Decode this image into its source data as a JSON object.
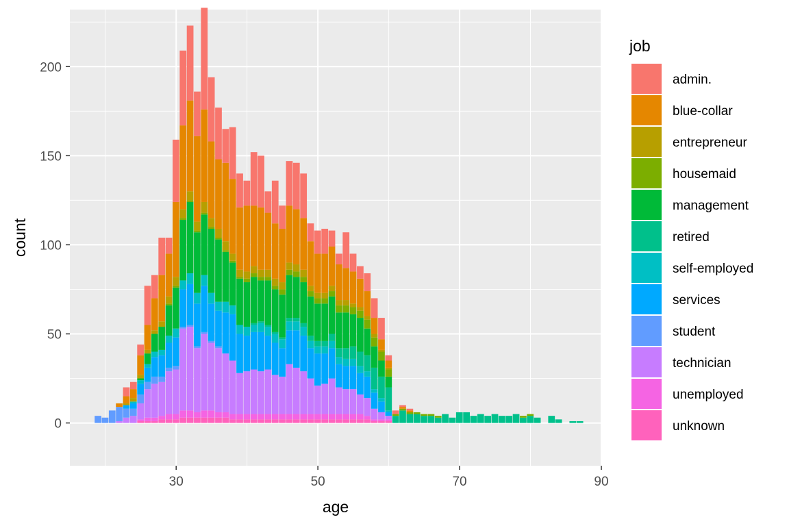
{
  "chart_data": {
    "type": "bar",
    "stacked": true,
    "xlabel": "age",
    "ylabel": "count",
    "xlim": [
      15,
      90
    ],
    "ylim": [
      -24,
      232
    ],
    "x_ticks": [
      30,
      50,
      70,
      90
    ],
    "y_ticks": [
      0,
      50,
      100,
      150,
      200
    ],
    "grid": true,
    "legend_title": "job",
    "legend_position": "right",
    "x": [
      19,
      20,
      21,
      22,
      23,
      24,
      25,
      26,
      27,
      28,
      29,
      30,
      31,
      32,
      33,
      34,
      35,
      36,
      37,
      38,
      39,
      40,
      41,
      42,
      43,
      44,
      45,
      46,
      47,
      48,
      49,
      50,
      51,
      52,
      53,
      54,
      55,
      56,
      57,
      58,
      59,
      60,
      61,
      62,
      63,
      64,
      65,
      66,
      67,
      68,
      69,
      70,
      71,
      72,
      73,
      74,
      75,
      76,
      77,
      78,
      79,
      80,
      81,
      83,
      84,
      86,
      87
    ],
    "series": [
      {
        "name": "unknown",
        "color": "#FF62BC",
        "values": [
          0,
          0,
          0,
          0,
          0,
          0,
          1,
          1,
          1,
          2,
          2,
          2,
          3,
          3,
          3,
          3,
          3,
          3,
          3,
          2,
          2,
          2,
          2,
          2,
          2,
          2,
          2,
          2,
          2,
          2,
          2,
          2,
          2,
          2,
          2,
          2,
          2,
          2,
          2,
          1,
          1,
          1,
          0,
          0,
          0,
          0,
          0,
          0,
          0,
          0,
          0,
          0,
          0,
          0,
          0,
          0,
          0,
          0,
          0,
          0,
          0,
          0,
          0,
          0,
          0,
          0,
          0
        ]
      },
      {
        "name": "unemployed",
        "color": "#F564E3",
        "values": [
          0,
          0,
          0,
          0,
          0,
          0,
          1,
          2,
          2,
          2,
          3,
          3,
          4,
          4,
          3,
          4,
          4,
          3,
          3,
          3,
          3,
          3,
          3,
          3,
          3,
          3,
          3,
          3,
          3,
          3,
          3,
          3,
          3,
          3,
          3,
          3,
          3,
          3,
          2,
          1,
          1,
          1,
          0,
          0,
          0,
          0,
          0,
          0,
          0,
          0,
          0,
          0,
          0,
          0,
          0,
          0,
          0,
          0,
          0,
          0,
          0,
          0,
          0,
          0,
          0,
          0,
          0
        ]
      },
      {
        "name": "technician",
        "color": "#C77CFF",
        "values": [
          0,
          0,
          0,
          1,
          3,
          4,
          9,
          16,
          19,
          19,
          24,
          25,
          46,
          47,
          36,
          43,
          38,
          36,
          33,
          30,
          23,
          24,
          25,
          24,
          25,
          22,
          21,
          28,
          26,
          24,
          20,
          16,
          17,
          20,
          15,
          14,
          14,
          11,
          10,
          6,
          4,
          2,
          0,
          0,
          0,
          0,
          0,
          0,
          0,
          0,
          0,
          0,
          0,
          0,
          0,
          0,
          0,
          0,
          0,
          0,
          0,
          0,
          0,
          0,
          0,
          0,
          0
        ]
      },
      {
        "name": "student",
        "color": "#619CFF",
        "values": [
          4,
          3,
          7,
          8,
          5,
          4,
          5,
          4,
          4,
          3,
          2,
          2,
          1,
          1,
          1,
          1,
          1,
          1,
          0,
          0,
          0,
          0,
          0,
          0,
          0,
          0,
          0,
          0,
          0,
          0,
          0,
          0,
          0,
          0,
          0,
          0,
          0,
          0,
          0,
          0,
          0,
          0,
          0,
          0,
          0,
          0,
          0,
          0,
          0,
          0,
          0,
          0,
          0,
          0,
          0,
          0,
          0,
          0,
          0,
          0,
          0,
          0,
          0,
          0,
          0,
          0,
          0
        ]
      },
      {
        "name": "services",
        "color": "#00A9FF",
        "values": [
          0,
          0,
          0,
          0,
          2,
          3,
          6,
          8,
          11,
          12,
          14,
          16,
          21,
          23,
          24,
          26,
          21,
          20,
          23,
          26,
          22,
          20,
          21,
          22,
          19,
          18,
          16,
          19,
          21,
          20,
          17,
          18,
          17,
          17,
          13,
          13,
          13,
          12,
          12,
          9,
          6,
          2,
          0,
          0,
          0,
          0,
          0,
          0,
          0,
          0,
          0,
          0,
          0,
          0,
          0,
          0,
          0,
          0,
          0,
          0,
          0,
          0,
          0,
          0,
          0,
          0,
          0
        ]
      },
      {
        "name": "self-employed",
        "color": "#00BFC4",
        "values": [
          0,
          0,
          0,
          0,
          0,
          1,
          2,
          2,
          3,
          3,
          4,
          5,
          5,
          6,
          6,
          6,
          6,
          5,
          6,
          5,
          5,
          5,
          4,
          5,
          5,
          5,
          5,
          5,
          5,
          5,
          4,
          4,
          4,
          4,
          4,
          4,
          4,
          4,
          3,
          2,
          2,
          1,
          0,
          0,
          0,
          0,
          0,
          0,
          0,
          0,
          0,
          0,
          0,
          0,
          0,
          0,
          0,
          0,
          0,
          0,
          0,
          0,
          0,
          0,
          0,
          0,
          0
        ]
      },
      {
        "name": "retired",
        "color": "#00C08B",
        "values": [
          0,
          0,
          0,
          0,
          0,
          0,
          0,
          0,
          0,
          0,
          0,
          0,
          0,
          0,
          0,
          0,
          0,
          0,
          0,
          0,
          0,
          0,
          1,
          1,
          1,
          1,
          1,
          2,
          2,
          2,
          3,
          3,
          3,
          4,
          5,
          6,
          7,
          8,
          9,
          12,
          12,
          13,
          4,
          7,
          5,
          5,
          4,
          4,
          3,
          5,
          3,
          6,
          6,
          4,
          5,
          4,
          5,
          4,
          4,
          5,
          3,
          4,
          3,
          4,
          2,
          1,
          1
        ]
      },
      {
        "name": "management",
        "color": "#00BA38",
        "values": [
          0,
          0,
          0,
          0,
          0,
          0,
          1,
          6,
          10,
          13,
          17,
          23,
          34,
          40,
          34,
          34,
          36,
          35,
          28,
          24,
          26,
          25,
          26,
          23,
          25,
          24,
          24,
          24,
          23,
          23,
          22,
          21,
          21,
          21,
          20,
          20,
          18,
          19,
          15,
          12,
          9,
          6,
          0,
          0,
          0,
          0,
          0,
          0,
          0,
          0,
          0,
          0,
          0,
          0,
          0,
          0,
          0,
          0,
          0,
          0,
          0,
          0,
          0,
          0,
          0,
          0,
          0
        ]
      },
      {
        "name": "housemaid",
        "color": "#7CAE00",
        "values": [
          0,
          0,
          0,
          0,
          0,
          0,
          0,
          0,
          0,
          0,
          1,
          1,
          1,
          1,
          1,
          1,
          1,
          1,
          1,
          1,
          1,
          2,
          2,
          2,
          2,
          2,
          3,
          3,
          3,
          3,
          3,
          3,
          3,
          3,
          4,
          4,
          4,
          4,
          5,
          5,
          5,
          4,
          1,
          1,
          1,
          1,
          1,
          1,
          1,
          0,
          0,
          0,
          0,
          0,
          0,
          0,
          0,
          0,
          0,
          0,
          1,
          1,
          0,
          0,
          0,
          0,
          0
        ]
      },
      {
        "name": "entrepreneur",
        "color": "#B79F00",
        "values": [
          0,
          0,
          0,
          0,
          1,
          2,
          2,
          2,
          2,
          3,
          4,
          5,
          5,
          5,
          5,
          6,
          5,
          5,
          5,
          4,
          4,
          4,
          4,
          4,
          4,
          4,
          4,
          4,
          4,
          4,
          3,
          3,
          3,
          3,
          3,
          3,
          2,
          2,
          2,
          2,
          1,
          1,
          0,
          0,
          0,
          0,
          0,
          0,
          0,
          0,
          0,
          0,
          0,
          0,
          0,
          0,
          0,
          0,
          0,
          0,
          0,
          0,
          0,
          0,
          0,
          0,
          0
        ]
      },
      {
        "name": "blue-collar",
        "color": "#E58700",
        "values": [
          0,
          0,
          0,
          2,
          4,
          5,
          11,
          14,
          18,
          26,
          24,
          42,
          47,
          51,
          48,
          52,
          43,
          39,
          44,
          42,
          35,
          37,
          34,
          35,
          32,
          31,
          30,
          32,
          31,
          29,
          25,
          22,
          22,
          22,
          20,
          18,
          18,
          16,
          14,
          9,
          6,
          4,
          0,
          1,
          1,
          0,
          0,
          0,
          0,
          0,
          0,
          0,
          0,
          0,
          0,
          0,
          0,
          0,
          0,
          0,
          0,
          0,
          0,
          0,
          0,
          0,
          0
        ]
      },
      {
        "name": "admin.",
        "color": "#F8766D",
        "values": [
          0,
          0,
          0,
          0,
          5,
          4,
          6,
          22,
          13,
          21,
          9,
          35,
          42,
          42,
          25,
          57,
          36,
          29,
          19,
          29,
          19,
          14,
          30,
          29,
          12,
          24,
          13,
          25,
          26,
          25,
          10,
          13,
          14,
          9,
          6,
          20,
          10,
          7,
          10,
          11,
          12,
          3,
          2,
          1,
          1,
          0,
          0,
          0,
          0,
          0,
          0,
          0,
          0,
          0,
          0,
          0,
          0,
          0,
          0,
          0,
          0,
          0,
          0,
          0,
          0,
          0,
          0
        ]
      }
    ]
  }
}
